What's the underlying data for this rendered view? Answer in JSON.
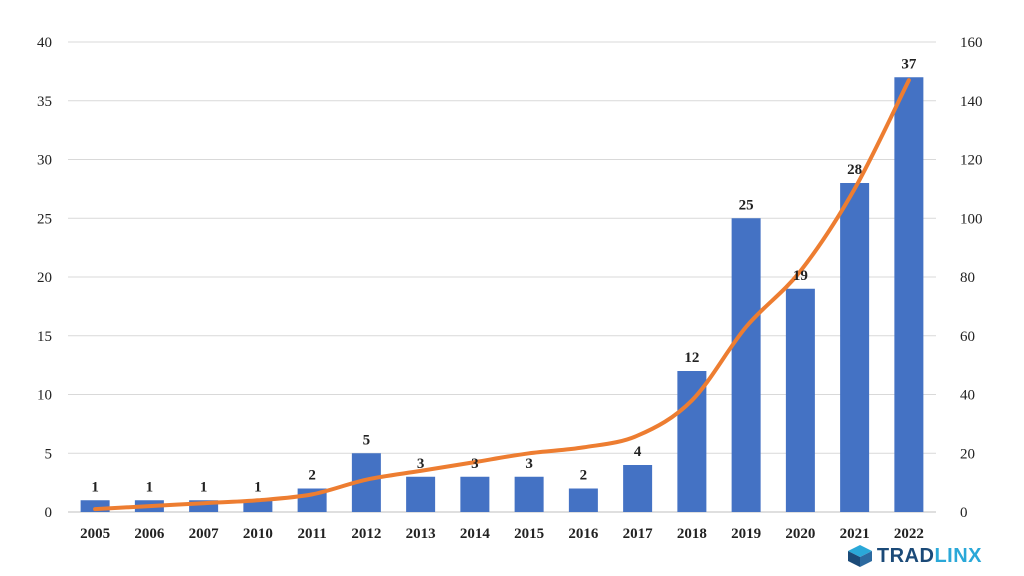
{
  "chart_data": {
    "type": "bar+line",
    "categories": [
      "2005",
      "2006",
      "2007",
      "2010",
      "2011",
      "2012",
      "2013",
      "2014",
      "2015",
      "2016",
      "2017",
      "2018",
      "2019",
      "2020",
      "2021",
      "2022"
    ],
    "series": [
      {
        "type": "bar",
        "axis": "left",
        "color": "#4472c4",
        "values": [
          1,
          1,
          1,
          1,
          2,
          5,
          3,
          3,
          3,
          2,
          4,
          12,
          25,
          19,
          28,
          37
        ]
      },
      {
        "type": "line",
        "axis": "right",
        "color": "#ed7d31",
        "values": [
          1,
          2,
          3,
          4,
          6,
          11,
          14,
          17,
          20,
          22,
          26,
          38,
          63,
          82,
          110,
          147
        ]
      }
    ],
    "y_left": {
      "min": 0,
      "max": 40,
      "step": 5
    },
    "y_right": {
      "min": 0,
      "max": 160,
      "step": 20
    },
    "grid": true,
    "title": "",
    "xlabel": "",
    "ylabel": ""
  },
  "brand": {
    "name_main": "TRADLINX",
    "name_prefix": "TRAD",
    "name_suffix": "LINX",
    "logo_color": "#1b4a78",
    "accent_color": "#2aa8d8"
  }
}
